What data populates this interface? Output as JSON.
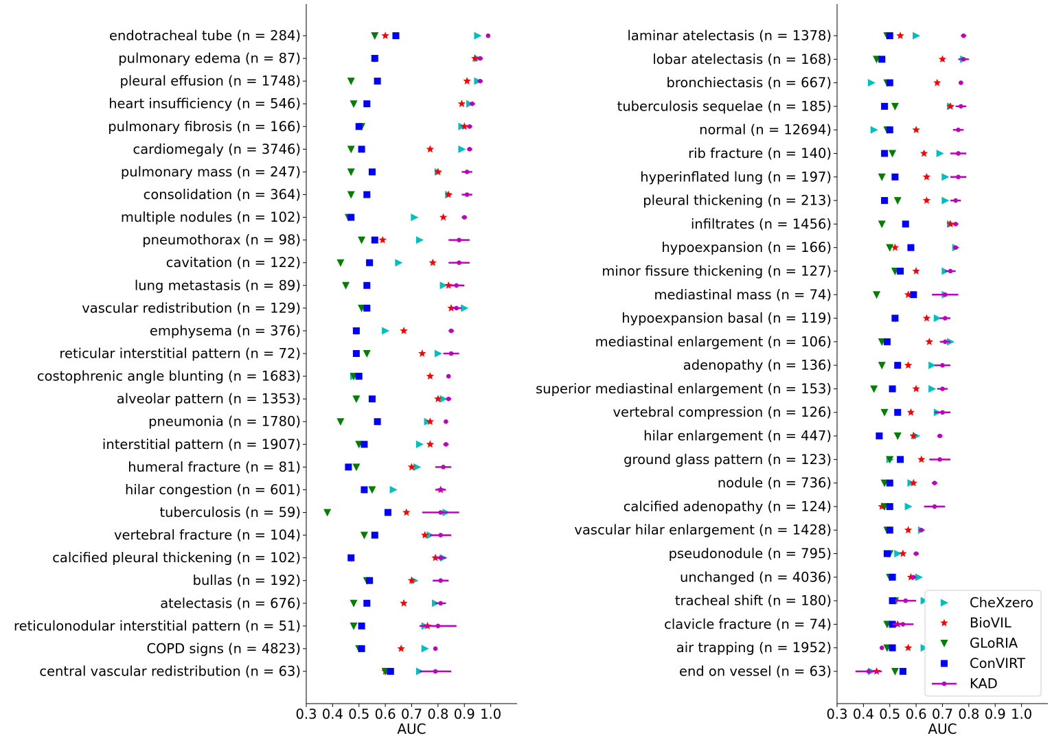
{
  "chart_data": [
    {
      "type": "scatter",
      "xlabel": "AUC",
      "xlim": [
        0.3,
        1.1
      ],
      "xticks": [
        "0.3",
        "0.4",
        "0.5",
        "0.6",
        "0.7",
        "0.8",
        "0.9",
        "1.0"
      ],
      "grid": false,
      "categories": [
        "endotracheal tube (n = 284)",
        "pulmonary edema (n = 87)",
        "pleural effusion (n = 1748)",
        "heart insufficiency (n = 546)",
        "pulmonary fibrosis (n = 166)",
        "cardiomegaly (n = 3746)",
        "pulmonary mass (n = 247)",
        "consolidation (n = 364)",
        "multiple nodules (n = 102)",
        "pneumothorax (n = 98)",
        "cavitation (n = 122)",
        "lung metastasis (n = 89)",
        "vascular redistribution (n = 129)",
        "emphysema (n = 376)",
        "reticular interstitial pattern (n = 72)",
        "costophrenic angle blunting (n = 1683)",
        "alveolar pattern (n = 1353)",
        "pneumonia (n = 1780)",
        "interstitial pattern (n = 1907)",
        "humeral fracture (n = 81)",
        "hilar congestion (n = 601)",
        "tuberculosis (n = 59)",
        "vertebral fracture (n = 104)",
        "calcified pleural thickening (n = 102)",
        "bullas (n = 192)",
        "atelectasis (n = 676)",
        "reticulonodular interstitial pattern (n = 51)",
        "COPD signs (n = 4823)",
        "central vascular redistribution (n = 63)"
      ],
      "series": [
        {
          "name": "CheXzero",
          "marker": "triangle-right",
          "color": "#00bfbf",
          "values": [
            0.95,
            0.95,
            0.95,
            0.92,
            0.89,
            0.89,
            0.8,
            0.84,
            0.71,
            0.73,
            0.65,
            0.82,
            0.9,
            0.6,
            0.8,
            0.48,
            0.82,
            0.76,
            0.73,
            0.72,
            0.63,
            0.83,
            0.77,
            0.82,
            0.71,
            0.79,
            0.75,
            0.75,
            0.73
          ]
        },
        {
          "name": "BioVIL",
          "marker": "star",
          "color": "#ff0000",
          "values": [
            0.6,
            0.94,
            0.91,
            0.89,
            0.9,
            0.77,
            0.8,
            0.84,
            0.82,
            0.59,
            0.78,
            0.84,
            0.85,
            0.67,
            0.74,
            0.77,
            0.8,
            0.77,
            0.77,
            0.7,
            0.81,
            0.68,
            0.75,
            0.79,
            0.7,
            0.67,
            0.76,
            0.66,
            0.6
          ]
        },
        {
          "name": "GLoRIA",
          "marker": "triangle-down",
          "color": "#008000",
          "values": [
            0.56,
            0.56,
            0.47,
            0.48,
            0.51,
            0.47,
            0.47,
            0.47,
            0.46,
            0.51,
            0.43,
            0.45,
            0.51,
            0.49,
            0.53,
            0.48,
            0.49,
            0.43,
            0.5,
            0.49,
            0.55,
            0.38,
            0.52,
            0.47,
            0.53,
            0.48,
            0.48,
            0.5,
            0.6
          ]
        },
        {
          "name": "ConVIRT",
          "marker": "square",
          "color": "#0000ff",
          "values": [
            0.64,
            0.56,
            0.57,
            0.53,
            0.5,
            0.51,
            0.55,
            0.53,
            0.47,
            0.56,
            0.54,
            0.53,
            0.53,
            0.49,
            0.49,
            0.5,
            0.55,
            0.57,
            0.52,
            0.46,
            0.52,
            0.61,
            0.56,
            0.47,
            0.54,
            0.53,
            0.51,
            0.51,
            0.62
          ]
        },
        {
          "name": "KAD",
          "marker": "circle-errorbar",
          "color": "#bf00bf",
          "values": [
            0.99,
            0.96,
            0.96,
            0.93,
            0.92,
            0.92,
            0.91,
            0.91,
            0.9,
            0.88,
            0.88,
            0.87,
            0.87,
            0.85,
            0.85,
            0.84,
            0.84,
            0.83,
            0.83,
            0.82,
            0.81,
            0.81,
            0.81,
            0.81,
            0.81,
            0.81,
            0.8,
            0.79,
            0.79
          ],
          "err": [
            0.0,
            0.01,
            0.01,
            0.01,
            0.01,
            0.01,
            0.02,
            0.02,
            0.01,
            0.04,
            0.04,
            0.03,
            0.02,
            0.01,
            0.03,
            0.0,
            0.01,
            0.0,
            0.01,
            0.03,
            0.02,
            0.07,
            0.04,
            0.02,
            0.03,
            0.02,
            0.07,
            0.0,
            0.06
          ]
        }
      ]
    },
    {
      "type": "scatter",
      "xlabel": "AUC",
      "xlim": [
        0.3,
        1.1
      ],
      "xticks": [
        "0.3",
        "0.4",
        "0.5",
        "0.6",
        "0.7",
        "0.8",
        "0.9",
        "1.0"
      ],
      "grid": false,
      "legend": "bottom-right",
      "categories": [
        "laminar atelectasis (n = 1378)",
        "lobar atelectasis (n = 168)",
        "bronchiectasis (n = 667)",
        "tuberculosis sequelae (n = 185)",
        "normal (n = 12694)",
        "rib fracture (n = 140)",
        "hyperinflated lung (n = 197)",
        "pleural thickening (n = 213)",
        "infiltrates (n = 1456)",
        "hypoexpansion (n = 166)",
        "minor fissure thickening (n = 127)",
        "mediastinal mass (n = 74)",
        "hypoexpansion basal (n = 119)",
        "mediastinal enlargement (n = 106)",
        "adenopathy (n = 136)",
        "superior mediastinal enlargement (n = 153)",
        "vertebral compression (n = 126)",
        "hilar enlargement (n = 447)",
        "ground glass pattern (n = 123)",
        "nodule (n = 736)",
        "calcified adenopathy (n = 124)",
        "vascular hilar enlargement (n = 1428)",
        "pseudonodule (n = 795)",
        "unchanged (n = 4036)",
        "tracheal shift (n = 180)",
        "clavicle fracture (n = 74)",
        "air trapping (n = 1952)",
        "end on vessel (n = 63)"
      ],
      "series": [
        {
          "name": "CheXzero",
          "marker": "triangle-right",
          "color": "#00bfbf",
          "values": [
            0.6,
            0.78,
            0.43,
            0.73,
            0.44,
            0.69,
            0.71,
            0.71,
            0.73,
            0.75,
            0.71,
            0.71,
            0.68,
            0.73,
            0.66,
            0.66,
            0.68,
            0.6,
            0.5,
            0.58,
            0.57,
            0.62,
            0.53,
            0.61,
            0.63,
            0.51,
            0.63,
            0.43
          ]
        },
        {
          "name": "BioVIL",
          "marker": "star",
          "color": "#ff0000",
          "values": [
            0.54,
            0.7,
            0.68,
            0.73,
            0.6,
            0.63,
            0.64,
            0.64,
            0.73,
            0.52,
            0.6,
            0.57,
            0.64,
            0.65,
            0.57,
            0.6,
            0.58,
            0.59,
            0.62,
            0.59,
            0.47,
            0.57,
            0.55,
            0.58,
            0.52,
            0.53,
            0.57,
            0.45
          ]
        },
        {
          "name": "GLoRIA",
          "marker": "triangle-down",
          "color": "#008000",
          "values": [
            0.49,
            0.45,
            0.49,
            0.52,
            0.49,
            0.51,
            0.47,
            0.53,
            0.47,
            0.5,
            0.52,
            0.45,
            0.52,
            0.47,
            0.47,
            0.44,
            0.48,
            0.53,
            0.5,
            0.48,
            0.48,
            0.49,
            0.5,
            0.5,
            0.52,
            0.49,
            0.49,
            0.52
          ]
        },
        {
          "name": "ConVIRT",
          "marker": "square",
          "color": "#0000ff",
          "values": [
            0.5,
            0.47,
            0.5,
            0.48,
            0.5,
            0.48,
            0.52,
            0.48,
            0.56,
            0.58,
            0.54,
            0.59,
            0.52,
            0.49,
            0.53,
            0.51,
            0.53,
            0.46,
            0.54,
            0.5,
            0.5,
            0.5,
            0.49,
            0.51,
            0.51,
            0.51,
            0.51,
            0.55
          ]
        },
        {
          "name": "KAD",
          "marker": "circle-errorbar",
          "color": "#bf00bf",
          "values": [
            0.78,
            0.78,
            0.77,
            0.77,
            0.76,
            0.76,
            0.76,
            0.75,
            0.75,
            0.75,
            0.73,
            0.71,
            0.71,
            0.71,
            0.7,
            0.7,
            0.7,
            0.69,
            0.69,
            0.67,
            0.67,
            0.62,
            0.6,
            0.59,
            0.56,
            0.55,
            0.47,
            0.42
          ],
          "err": [
            0.01,
            0.02,
            0.0,
            0.02,
            0.02,
            0.03,
            0.03,
            0.02,
            0.01,
            0.01,
            0.02,
            0.05,
            0.02,
            0.02,
            0.03,
            0.02,
            0.03,
            0.01,
            0.04,
            0.01,
            0.04,
            0.01,
            0.01,
            0.01,
            0.04,
            0.04,
            0.0,
            0.05
          ]
        }
      ]
    }
  ]
}
